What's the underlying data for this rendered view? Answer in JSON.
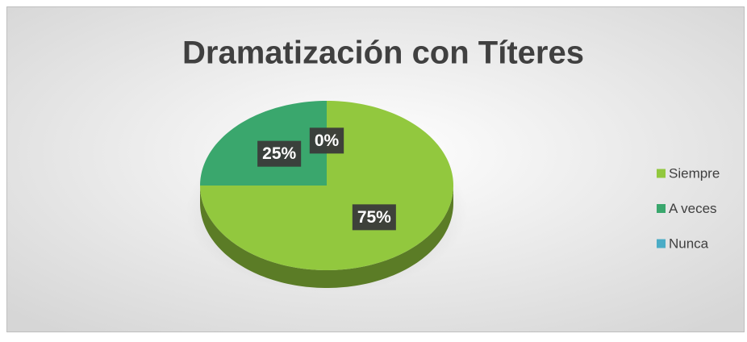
{
  "chart_data": {
    "type": "pie",
    "title": "Dramatización con Títeres",
    "categories": [
      "Siempre",
      "A veces",
      "Nunca"
    ],
    "values": [
      75,
      25,
      0
    ],
    "value_labels": [
      "75%",
      "25%",
      "0%"
    ],
    "colors": [
      "#92c83e",
      "#3aa76d",
      "#4bacc6"
    ],
    "legend": "right"
  }
}
